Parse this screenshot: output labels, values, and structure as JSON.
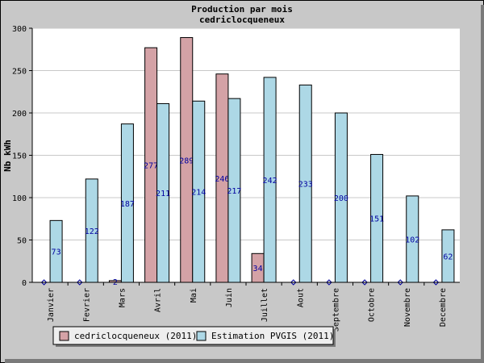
{
  "chart_data": {
    "type": "bar",
    "title": "Production par mois",
    "subtitle": "cedriclocqueneux",
    "ylabel": "Nb kWh",
    "xlabel": "",
    "ylim": [
      0,
      300
    ],
    "yticks": [
      0,
      50,
      100,
      150,
      200,
      250,
      300
    ],
    "categories": [
      "Janvier",
      "Fevrier",
      "Mars",
      "Avril",
      "Mai",
      "Juin",
      "Juillet",
      "Aout",
      "Septembre",
      "Octobre",
      "Novembre",
      "Decembre"
    ],
    "series": [
      {
        "name": "cedriclocqueneux (2011)",
        "color": "#d4a2a6",
        "values": [
          0,
          0,
          2,
          277,
          289,
          246,
          34,
          0,
          0,
          0,
          0,
          0
        ],
        "labels": [
          "",
          "",
          "2",
          "277",
          "289",
          "246",
          "34",
          "",
          "",
          "",
          "",
          ""
        ]
      },
      {
        "name": "Estimation PVGIS (2011)",
        "color": "#add8e6",
        "values": [
          73,
          122,
          187,
          211,
          214,
          217,
          242,
          233,
          200,
          151,
          102,
          62
        ],
        "labels": [
          "73",
          "122",
          "187",
          "211",
          "214",
          "217",
          "242",
          "233",
          "200",
          "151",
          "102",
          "62"
        ]
      }
    ],
    "grid": true,
    "legend_position": "bottom-left"
  }
}
